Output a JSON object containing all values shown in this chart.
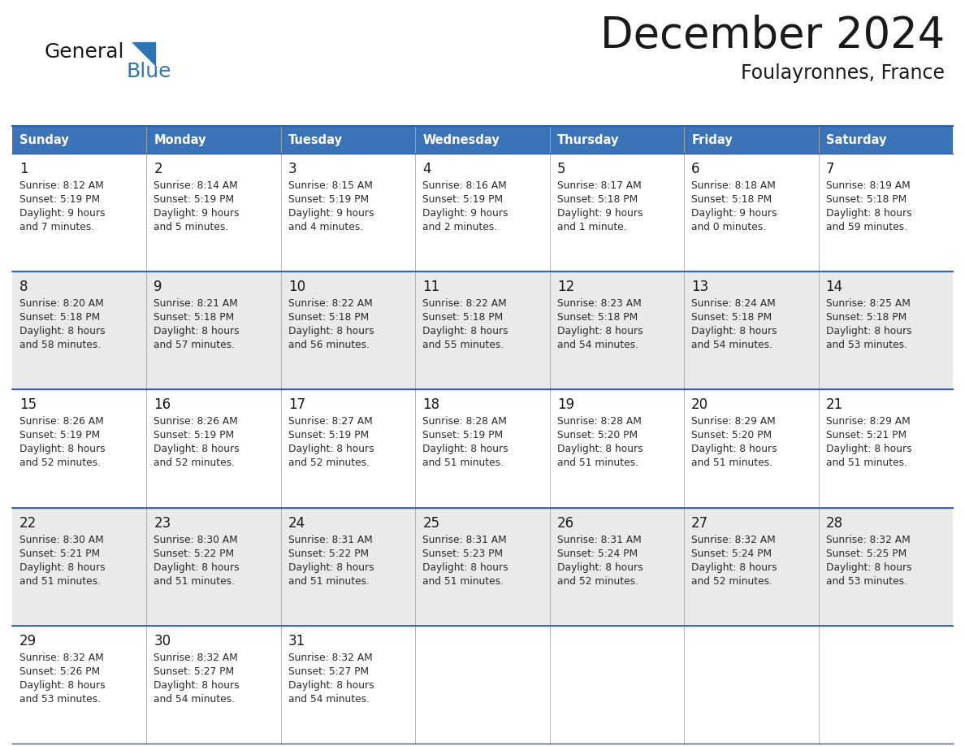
{
  "title": "December 2024",
  "subtitle": "Foulayronnes, France",
  "header_bg_color": "#3B73B9",
  "header_text_color": "#FFFFFF",
  "day_names": [
    "Sunday",
    "Monday",
    "Tuesday",
    "Wednesday",
    "Thursday",
    "Friday",
    "Saturday"
  ],
  "row_bg_even": "#FFFFFF",
  "row_bg_odd": "#EAEAEA",
  "cell_border_color": "#2E5F9E",
  "day_number_color": "#1a1a1a",
  "info_text_color": "#2a2a2a",
  "title_color": "#1a1a1a",
  "subtitle_color": "#1a1a1a",
  "logo_general_color": "#1a1a1a",
  "logo_blue_color": "#2E75B6",
  "calendar_data": [
    [
      {
        "day": 1,
        "sunrise": "8:12 AM",
        "sunset": "5:19 PM",
        "daylight_line1": "9 hours",
        "daylight_line2": "and 7 minutes."
      },
      {
        "day": 2,
        "sunrise": "8:14 AM",
        "sunset": "5:19 PM",
        "daylight_line1": "9 hours",
        "daylight_line2": "and 5 minutes."
      },
      {
        "day": 3,
        "sunrise": "8:15 AM",
        "sunset": "5:19 PM",
        "daylight_line1": "9 hours",
        "daylight_line2": "and 4 minutes."
      },
      {
        "day": 4,
        "sunrise": "8:16 AM",
        "sunset": "5:19 PM",
        "daylight_line1": "9 hours",
        "daylight_line2": "and 2 minutes."
      },
      {
        "day": 5,
        "sunrise": "8:17 AM",
        "sunset": "5:18 PM",
        "daylight_line1": "9 hours",
        "daylight_line2": "and 1 minute."
      },
      {
        "day": 6,
        "sunrise": "8:18 AM",
        "sunset": "5:18 PM",
        "daylight_line1": "9 hours",
        "daylight_line2": "and 0 minutes."
      },
      {
        "day": 7,
        "sunrise": "8:19 AM",
        "sunset": "5:18 PM",
        "daylight_line1": "8 hours",
        "daylight_line2": "and 59 minutes."
      }
    ],
    [
      {
        "day": 8,
        "sunrise": "8:20 AM",
        "sunset": "5:18 PM",
        "daylight_line1": "8 hours",
        "daylight_line2": "and 58 minutes."
      },
      {
        "day": 9,
        "sunrise": "8:21 AM",
        "sunset": "5:18 PM",
        "daylight_line1": "8 hours",
        "daylight_line2": "and 57 minutes."
      },
      {
        "day": 10,
        "sunrise": "8:22 AM",
        "sunset": "5:18 PM",
        "daylight_line1": "8 hours",
        "daylight_line2": "and 56 minutes."
      },
      {
        "day": 11,
        "sunrise": "8:22 AM",
        "sunset": "5:18 PM",
        "daylight_line1": "8 hours",
        "daylight_line2": "and 55 minutes."
      },
      {
        "day": 12,
        "sunrise": "8:23 AM",
        "sunset": "5:18 PM",
        "daylight_line1": "8 hours",
        "daylight_line2": "and 54 minutes."
      },
      {
        "day": 13,
        "sunrise": "8:24 AM",
        "sunset": "5:18 PM",
        "daylight_line1": "8 hours",
        "daylight_line2": "and 54 minutes."
      },
      {
        "day": 14,
        "sunrise": "8:25 AM",
        "sunset": "5:18 PM",
        "daylight_line1": "8 hours",
        "daylight_line2": "and 53 minutes."
      }
    ],
    [
      {
        "day": 15,
        "sunrise": "8:26 AM",
        "sunset": "5:19 PM",
        "daylight_line1": "8 hours",
        "daylight_line2": "and 52 minutes."
      },
      {
        "day": 16,
        "sunrise": "8:26 AM",
        "sunset": "5:19 PM",
        "daylight_line1": "8 hours",
        "daylight_line2": "and 52 minutes."
      },
      {
        "day": 17,
        "sunrise": "8:27 AM",
        "sunset": "5:19 PM",
        "daylight_line1": "8 hours",
        "daylight_line2": "and 52 minutes."
      },
      {
        "day": 18,
        "sunrise": "8:28 AM",
        "sunset": "5:19 PM",
        "daylight_line1": "8 hours",
        "daylight_line2": "and 51 minutes."
      },
      {
        "day": 19,
        "sunrise": "8:28 AM",
        "sunset": "5:20 PM",
        "daylight_line1": "8 hours",
        "daylight_line2": "and 51 minutes."
      },
      {
        "day": 20,
        "sunrise": "8:29 AM",
        "sunset": "5:20 PM",
        "daylight_line1": "8 hours",
        "daylight_line2": "and 51 minutes."
      },
      {
        "day": 21,
        "sunrise": "8:29 AM",
        "sunset": "5:21 PM",
        "daylight_line1": "8 hours",
        "daylight_line2": "and 51 minutes."
      }
    ],
    [
      {
        "day": 22,
        "sunrise": "8:30 AM",
        "sunset": "5:21 PM",
        "daylight_line1": "8 hours",
        "daylight_line2": "and 51 minutes."
      },
      {
        "day": 23,
        "sunrise": "8:30 AM",
        "sunset": "5:22 PM",
        "daylight_line1": "8 hours",
        "daylight_line2": "and 51 minutes."
      },
      {
        "day": 24,
        "sunrise": "8:31 AM",
        "sunset": "5:22 PM",
        "daylight_line1": "8 hours",
        "daylight_line2": "and 51 minutes."
      },
      {
        "day": 25,
        "sunrise": "8:31 AM",
        "sunset": "5:23 PM",
        "daylight_line1": "8 hours",
        "daylight_line2": "and 51 minutes."
      },
      {
        "day": 26,
        "sunrise": "8:31 AM",
        "sunset": "5:24 PM",
        "daylight_line1": "8 hours",
        "daylight_line2": "and 52 minutes."
      },
      {
        "day": 27,
        "sunrise": "8:32 AM",
        "sunset": "5:24 PM",
        "daylight_line1": "8 hours",
        "daylight_line2": "and 52 minutes."
      },
      {
        "day": 28,
        "sunrise": "8:32 AM",
        "sunset": "5:25 PM",
        "daylight_line1": "8 hours",
        "daylight_line2": "and 53 minutes."
      }
    ],
    [
      {
        "day": 29,
        "sunrise": "8:32 AM",
        "sunset": "5:26 PM",
        "daylight_line1": "8 hours",
        "daylight_line2": "and 53 minutes."
      },
      {
        "day": 30,
        "sunrise": "8:32 AM",
        "sunset": "5:27 PM",
        "daylight_line1": "8 hours",
        "daylight_line2": "and 54 minutes."
      },
      {
        "day": 31,
        "sunrise": "8:32 AM",
        "sunset": "5:27 PM",
        "daylight_line1": "8 hours",
        "daylight_line2": "and 54 minutes."
      },
      null,
      null,
      null,
      null
    ]
  ],
  "fig_width": 11.88,
  "fig_height": 9.18,
  "dpi": 100
}
